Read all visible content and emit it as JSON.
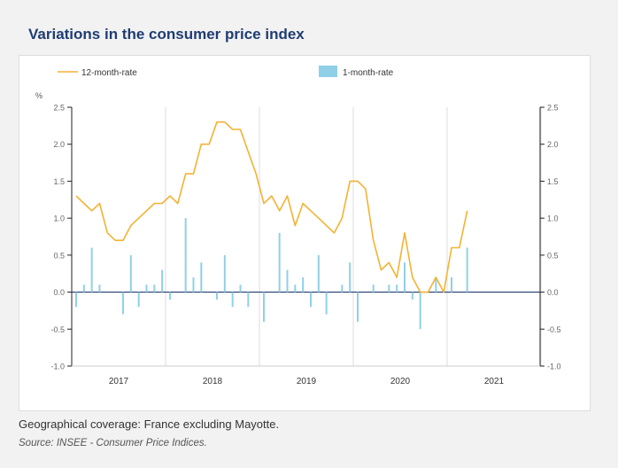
{
  "page": {
    "title": "Variations in the consumer price index",
    "note": "Geographical coverage: France excluding Mayotte.",
    "source": "Source: INSEE - Consumer Price Indices."
  },
  "colors": {
    "line": "#f4b233",
    "bar": "#8fd0e8",
    "title": "#1f3c73",
    "axis": "#222222",
    "grid": "#dddddd"
  },
  "chart_data": {
    "type": "line",
    "title": "",
    "xlabel": "",
    "ylabel": "%",
    "ylim": [
      -1.0,
      2.5
    ],
    "yticks": [
      "2.5",
      "2.0",
      "1.5",
      "1.0",
      "0.5",
      "0.0",
      "-0.5",
      "-1.0"
    ],
    "ytick_values": [
      2.5,
      2.0,
      1.5,
      1.0,
      0.5,
      0.0,
      -0.5,
      -1.0
    ],
    "years": [
      "2017",
      "2018",
      "2019",
      "2020",
      "2021"
    ],
    "grid": "vertical lines at year boundaries",
    "legend_position": "top",
    "series": [
      {
        "name": "12-month-rate",
        "kind": "line",
        "values": [
          1.3,
          1.2,
          1.1,
          1.2,
          0.8,
          0.7,
          0.7,
          0.9,
          1.0,
          1.1,
          1.2,
          1.2,
          1.3,
          1.2,
          1.6,
          1.6,
          2.0,
          2.0,
          2.3,
          2.3,
          2.2,
          2.2,
          1.9,
          1.6,
          1.2,
          1.3,
          1.1,
          1.3,
          0.9,
          1.2,
          1.1,
          1.0,
          0.9,
          0.8,
          1.0,
          1.5,
          1.5,
          1.4,
          0.7,
          0.3,
          0.4,
          0.2,
          0.8,
          0.2,
          0.0,
          0.0,
          0.2,
          0.0,
          0.6,
          0.6,
          1.1
        ]
      },
      {
        "name": "1-month-rate",
        "kind": "bar",
        "values": [
          -0.2,
          0.1,
          0.6,
          0.1,
          0.0,
          0.0,
          -0.3,
          0.5,
          -0.2,
          0.1,
          0.1,
          0.3,
          -0.1,
          0.0,
          1.0,
          0.2,
          0.4,
          0.0,
          -0.1,
          0.5,
          -0.2,
          0.1,
          -0.2,
          0.0,
          -0.4,
          0.0,
          0.8,
          0.3,
          0.1,
          0.2,
          -0.2,
          0.5,
          -0.3,
          0.0,
          0.1,
          0.4,
          -0.4,
          0.0,
          0.1,
          0.0,
          0.1,
          0.1,
          0.4,
          -0.1,
          -0.5,
          0.0,
          0.2,
          0.0,
          0.2,
          0.0,
          0.6
        ]
      }
    ]
  }
}
